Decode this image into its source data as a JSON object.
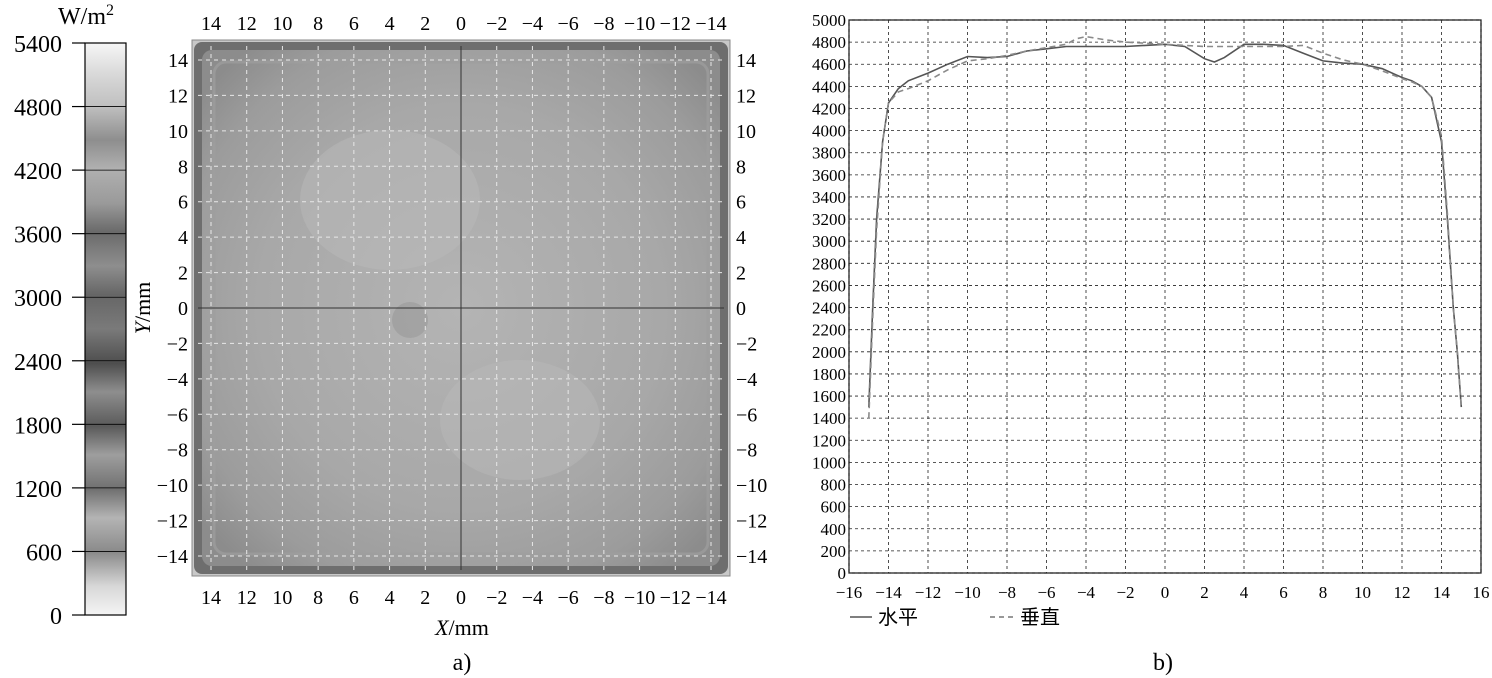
{
  "colorbar": {
    "unit_prefix": "W/m",
    "unit_sup": "2",
    "ticks": [
      "5400",
      "4800",
      "4200",
      "3600",
      "3000",
      "2400",
      "1800",
      "1200",
      "600",
      "0"
    ],
    "tick_values": [
      5400,
      4800,
      4200,
      3600,
      3000,
      2400,
      1800,
      1200,
      600,
      0
    ]
  },
  "panel_a": {
    "caption": "a)",
    "x_label_italic": "X",
    "x_label_unit": "/mm",
    "y_label_italic": "Y",
    "y_label_unit": "/mm",
    "x_ticks": [
      "14",
      "12",
      "10",
      "8",
      "6",
      "4",
      "2",
      "0",
      "−2",
      "−4",
      "−6",
      "−8",
      "−10",
      "−12",
      "−14"
    ],
    "x_tick_values": [
      14,
      12,
      10,
      8,
      6,
      4,
      2,
      0,
      -2,
      -4,
      -6,
      -8,
      -10,
      -12,
      -14
    ],
    "y_ticks": [
      "14",
      "12",
      "10",
      "8",
      "6",
      "4",
      "2",
      "0",
      "−2",
      "−4",
      "−6",
      "−8",
      "−10",
      "−12",
      "−14"
    ],
    "y_tick_values": [
      14,
      12,
      10,
      8,
      6,
      4,
      2,
      0,
      -2,
      -4,
      -6,
      -8,
      -10,
      -12,
      -14
    ]
  },
  "panel_b": {
    "caption": "b)",
    "legend": [
      "水平",
      "垂直"
    ],
    "x_ticks": [
      "−16",
      "−14",
      "−12",
      "−10",
      "−8",
      "−6",
      "−4",
      "−2",
      "0",
      "2",
      "4",
      "6",
      "8",
      "10",
      "12",
      "14",
      "16"
    ],
    "y_ticks": [
      "5000",
      "4800",
      "4600",
      "4400",
      "4200",
      "4000",
      "3800",
      "3600",
      "3400",
      "3200",
      "3000",
      "2800",
      "2600",
      "2400",
      "2200",
      "2000",
      "1800",
      "1600",
      "1400",
      "1200",
      "1000",
      "800",
      "600",
      "400",
      "200",
      "0"
    ]
  },
  "chart_data": [
    {
      "type": "heatmap",
      "xlabel": "X/mm",
      "ylabel": "Y/mm",
      "xlim": [
        14,
        -14
      ],
      "ylim": [
        -14,
        14
      ],
      "x_reversed": true,
      "grid": true,
      "colorbar": {
        "label": "W/m2",
        "range": [
          0,
          5400
        ],
        "ticks": [
          0,
          600,
          1200,
          1800,
          2400,
          3000,
          3600,
          4200,
          4800,
          5400
        ]
      },
      "value_range": [
        3900,
        4800
      ],
      "description_values": {
        "center": 4750,
        "edge": 3900
      }
    },
    {
      "type": "line",
      "xlim": [
        -16,
        16
      ],
      "ylim": [
        0,
        5000
      ],
      "grid": true,
      "legend_position": "bottom-left",
      "series": [
        {
          "name": "水平",
          "style": "solid",
          "x": [
            -15,
            -14.8,
            -14.6,
            -14.3,
            -14,
            -13.5,
            -13,
            -12,
            -11,
            -10,
            -9,
            -8,
            -7,
            -6,
            -5,
            -4,
            -3,
            -2,
            -1,
            0,
            1,
            2,
            2.5,
            3,
            4,
            5,
            6,
            7,
            8,
            9,
            10,
            11,
            12,
            12.5,
            13,
            13.5,
            14,
            14.3,
            14.6,
            14.8,
            15
          ],
          "values": [
            1500,
            2400,
            3200,
            3900,
            4250,
            4380,
            4450,
            4520,
            4600,
            4670,
            4660,
            4670,
            4720,
            4740,
            4760,
            4760,
            4760,
            4760,
            4770,
            4780,
            4760,
            4650,
            4620,
            4660,
            4780,
            4780,
            4770,
            4700,
            4630,
            4610,
            4600,
            4560,
            4480,
            4450,
            4400,
            4300,
            3900,
            3200,
            2400,
            2000,
            1500
          ]
        },
        {
          "name": "垂直",
          "style": "dashed",
          "x": [
            -15,
            -14.8,
            -14.6,
            -14.3,
            -14,
            -13.5,
            -13,
            -12,
            -11,
            -10,
            -9,
            -8,
            -7,
            -6,
            -5,
            -4.5,
            -4,
            -3,
            -2,
            -1,
            0,
            1,
            2,
            3,
            4,
            5,
            6,
            7,
            8,
            9,
            10,
            11,
            12,
            12.5,
            13,
            13.5,
            14,
            14.3,
            14.6,
            14.8,
            15
          ],
          "values": [
            1400,
            2300,
            3100,
            3900,
            4250,
            4350,
            4380,
            4450,
            4550,
            4630,
            4650,
            4680,
            4720,
            4750,
            4780,
            4830,
            4850,
            4820,
            4800,
            4790,
            4780,
            4770,
            4760,
            4760,
            4760,
            4760,
            4760,
            4770,
            4700,
            4640,
            4600,
            4540,
            4470,
            4440,
            4400,
            4300,
            3950,
            3250,
            2400,
            2000,
            1500
          ]
        }
      ]
    }
  ]
}
